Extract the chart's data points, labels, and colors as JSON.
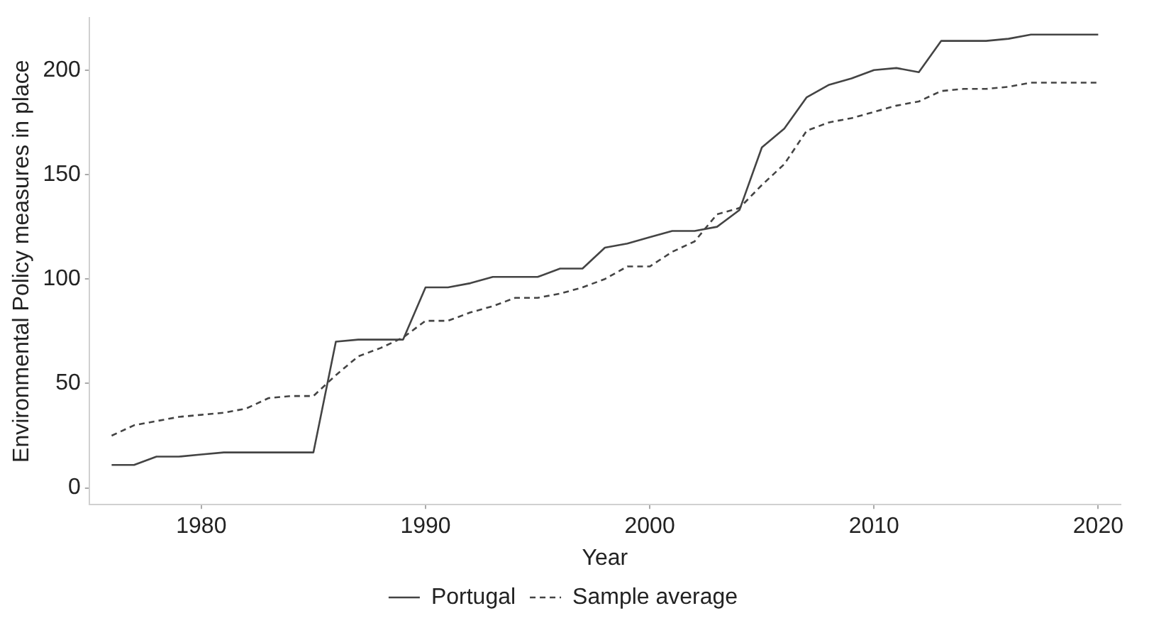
{
  "chart_data": {
    "type": "line",
    "xlabel": "Year",
    "ylabel": "Environmental Policy measures in place",
    "x": [
      1976,
      1977,
      1978,
      1979,
      1980,
      1981,
      1982,
      1983,
      1984,
      1985,
      1986,
      1987,
      1988,
      1989,
      1990,
      1991,
      1992,
      1993,
      1994,
      1995,
      1996,
      1997,
      1998,
      1999,
      2000,
      2001,
      2002,
      2003,
      2004,
      2005,
      2006,
      2007,
      2008,
      2009,
      2010,
      2011,
      2012,
      2013,
      2014,
      2015,
      2016,
      2017,
      2018,
      2019,
      2020
    ],
    "series": [
      {
        "name": "Portugal",
        "color": "#444444",
        "line_style": "solid",
        "values": [
          11,
          11,
          15,
          15,
          16,
          17,
          17,
          17,
          17,
          17,
          70,
          71,
          71,
          71,
          96,
          96,
          98,
          101,
          101,
          101,
          105,
          105,
          115,
          117,
          120,
          123,
          123,
          125,
          133,
          163,
          172,
          187,
          193,
          196,
          200,
          201,
          199,
          214,
          214,
          214,
          215,
          217,
          217,
          217,
          217
        ]
      },
      {
        "name": "Sample average",
        "color": "#444444",
        "line_style": "dashed",
        "values": [
          25,
          30,
          32,
          34,
          35,
          36,
          38,
          43,
          44,
          44,
          54,
          63,
          67,
          72,
          80,
          80,
          84,
          87,
          91,
          91,
          93,
          96,
          100,
          106,
          106,
          113,
          118,
          131,
          134,
          145,
          155,
          171,
          175,
          177,
          180,
          183,
          185,
          190,
          191,
          191,
          192,
          194,
          194,
          194,
          194
        ]
      }
    ],
    "xlim": [
      1975,
      2021
    ],
    "xticks": [
      1980,
      1990,
      2000,
      2010,
      2020
    ],
    "ylim": [
      -8,
      225
    ],
    "yticks": [
      0,
      50,
      100,
      150,
      200
    ],
    "grid": false,
    "legend": "bottom",
    "marker": "none"
  }
}
